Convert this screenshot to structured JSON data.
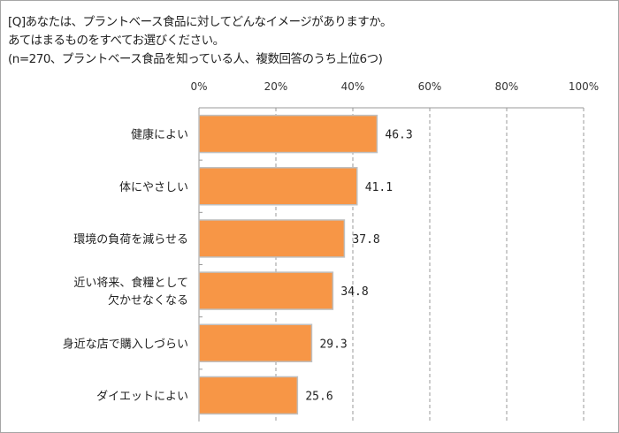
{
  "chart_data": {
    "type": "bar",
    "orientation": "horizontal",
    "title_lines": [
      "[Q]あなたは、プラントベース食品に対してどんなイメージがありますか。",
      "あてはまるものをすべてお選びください。",
      "(n=270、プラントベース食品を知っている人、複数回答のうち上位6つ)"
    ],
    "categories": [
      [
        "健康によい"
      ],
      [
        "体にやさしい"
      ],
      [
        "環境の負荷を減らせる"
      ],
      [
        "近い将来、食糧として",
        "欠かせなくなる"
      ],
      [
        "身近な店で購入しづらい"
      ],
      [
        "ダイエットによい"
      ]
    ],
    "values": [
      46.3,
      41.1,
      37.8,
      34.8,
      29.3,
      25.6
    ],
    "value_labels": [
      "46.3",
      "41.1",
      "37.8",
      "34.8",
      "29.3",
      "25.6"
    ],
    "xlim": [
      0,
      100
    ],
    "xticks": [
      0,
      20,
      40,
      60,
      80,
      100
    ],
    "xtick_labels": [
      "0%",
      "20%",
      "40%",
      "60%",
      "80%",
      "100%"
    ],
    "axis_position": "top",
    "grid": "vertical dashed",
    "bar_color": "#f79646",
    "bar_border_color": "#bfbfbf"
  }
}
